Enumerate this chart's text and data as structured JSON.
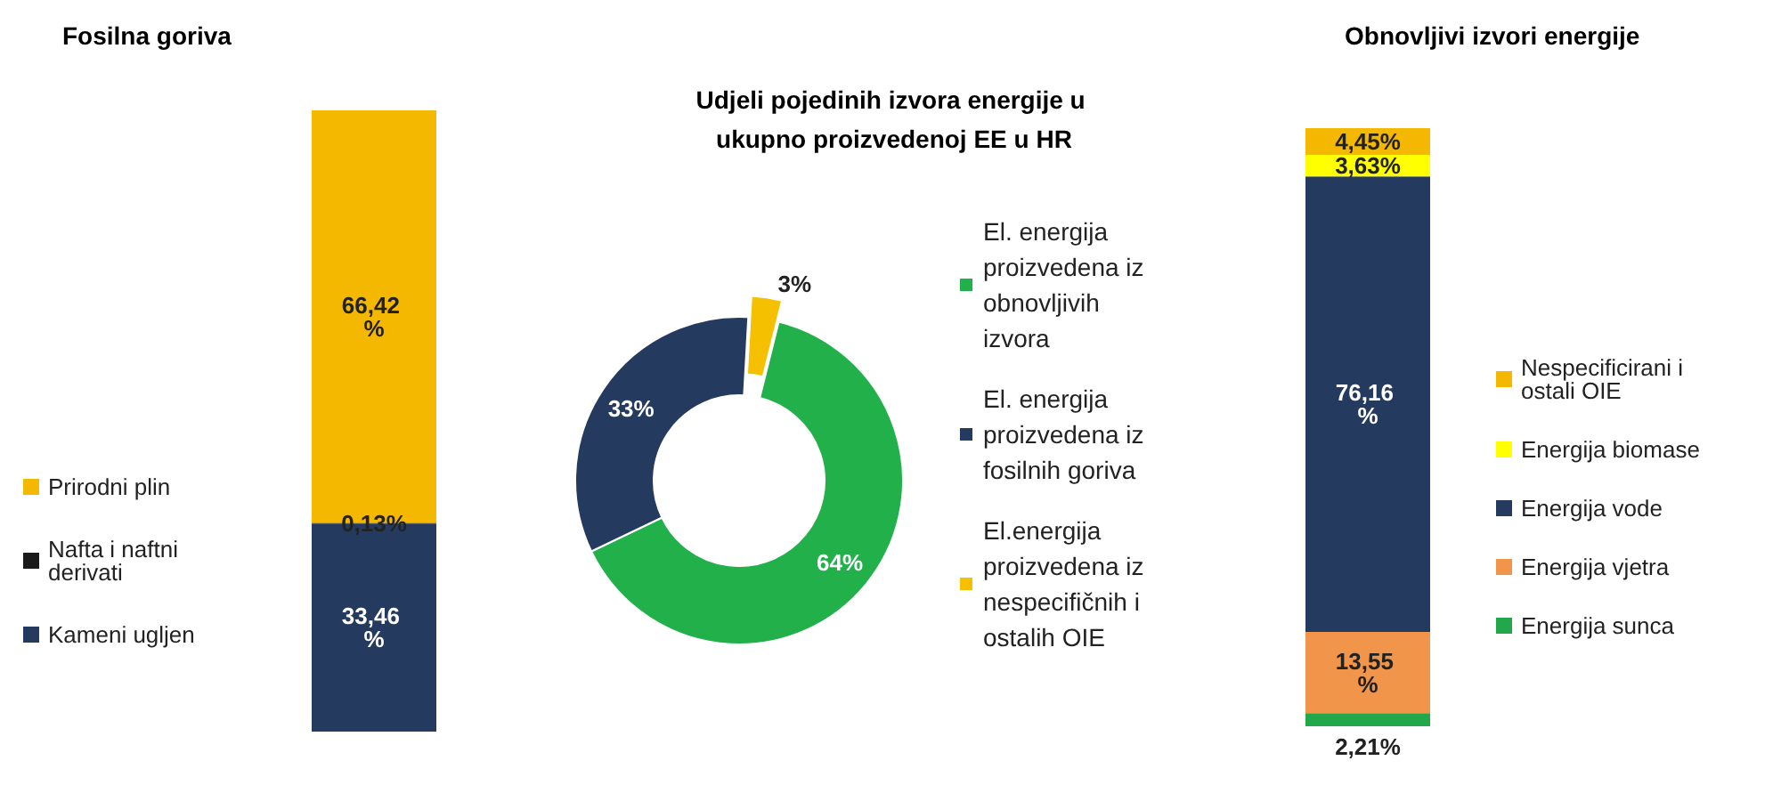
{
  "chart_data": [
    {
      "type": "bar",
      "title": "Fosilna goriva",
      "categories": [
        null
      ],
      "stacked": true,
      "legend": "left",
      "series": [
        {
          "name": "Kameni ugljen",
          "color": "#243a5e",
          "values": [
            33.46
          ],
          "value_labels": [
            "33,46 %"
          ]
        },
        {
          "name": "Nafta i naftni derivati",
          "color": "#1a1a1a",
          "values": [
            0.13
          ],
          "value_labels": [
            "0,13%"
          ]
        },
        {
          "name": "Prirodni plin",
          "color": "#f5b800",
          "values": [
            66.42
          ],
          "value_labels": [
            "66,42 %"
          ]
        }
      ]
    },
    {
      "type": "donut",
      "title": "Udjeli pojedinih izvora energije u ukupno proizvedenoj EE u HR",
      "legend": "right",
      "categories": [
        "El. energija proizvedena iz obnovljivih izvora",
        "El. energija proizvedena iz fosilnih goriva",
        "El.energija proizvedena iz nespecifičnih i ostalih OIE"
      ],
      "values": [
        64,
        33,
        3
      ],
      "colors": [
        "#22b04b",
        "#243a5e",
        "#f5c000"
      ],
      "value_labels": [
        "64%",
        "33%",
        "3%"
      ]
    },
    {
      "type": "bar",
      "title": "Obnovljivi izvori energije",
      "categories": [
        null
      ],
      "stacked": true,
      "legend": "right",
      "series": [
        {
          "name": "Energija sunca",
          "color": "#22a84a",
          "values": [
            2.21
          ],
          "value_labels": [
            "2,21%"
          ]
        },
        {
          "name": "Energija vjetra",
          "color": "#f0954a",
          "values": [
            13.55
          ],
          "value_labels": [
            "13,55 %"
          ]
        },
        {
          "name": "Energija vode",
          "color": "#243a5e",
          "values": [
            76.16
          ],
          "value_labels": [
            "76,16 %"
          ]
        },
        {
          "name": "Energija biomase",
          "color": "#ffff00",
          "values": [
            3.63
          ],
          "value_labels": [
            "3,63%"
          ]
        },
        {
          "name": "Nespecificirani i ostali OIE",
          "color": "#f5b800",
          "values": [
            4.45
          ],
          "value_labels": [
            "4,45%"
          ]
        }
      ]
    }
  ]
}
